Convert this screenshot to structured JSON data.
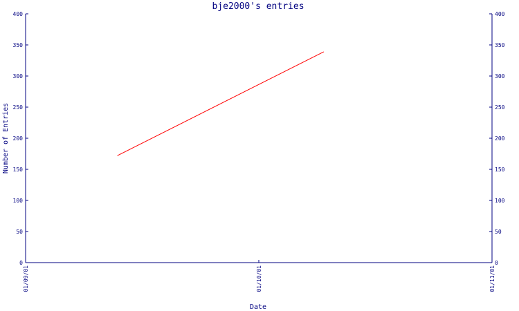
{
  "chart_data": {
    "type": "line",
    "title": "bje2000's entries",
    "xlabel": "Date",
    "ylabel": "Number of Entries",
    "ylim": [
      0,
      400
    ],
    "y_ticks": [
      0,
      50,
      100,
      150,
      200,
      250,
      300,
      350,
      400
    ],
    "x_ticks": [
      "01/09/01",
      "01/10/01",
      "01/11/01"
    ],
    "x_range": [
      "2001-09-01",
      "2001-11-01"
    ],
    "right_axis": true,
    "grid": false,
    "series": [
      {
        "color": "#ff0000",
        "points": [
          {
            "x": "2001-09-13",
            "y": 172
          },
          {
            "x": "2001-10-10",
            "y": 339
          }
        ]
      }
    ]
  },
  "colors": {
    "axis": "#000080",
    "line": "#ff0000",
    "background": "#ffffff"
  }
}
